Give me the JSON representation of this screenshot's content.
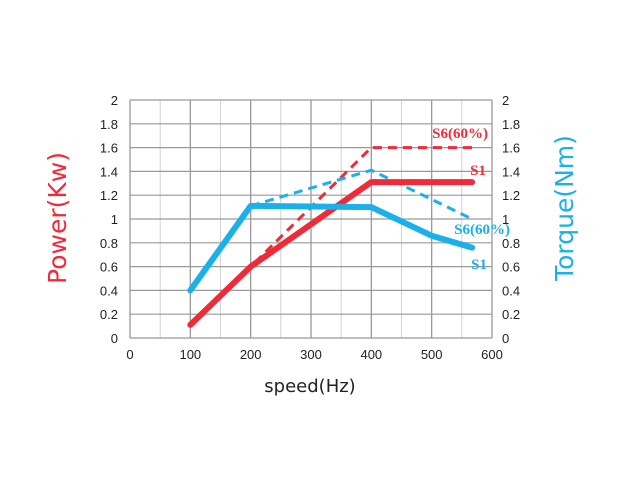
{
  "colors": {
    "power": "#f02a38",
    "torque": "#1ab0ea",
    "grid": "#999999",
    "text": "#222222"
  },
  "chart_data": {
    "type": "line",
    "xlabel": "speed(Hz)",
    "ylabel_left": "Power(Kw)",
    "ylabel_right": "Torque(Nm)",
    "xlim": [
      0,
      600
    ],
    "ylim_left": [
      0,
      2
    ],
    "ylim_right": [
      0,
      2
    ],
    "x_ticks": [
      "0",
      "100",
      "200",
      "300",
      "400",
      "500",
      "600"
    ],
    "y_ticks": [
      "0",
      "0.2",
      "0.4",
      "0.6",
      "0.8",
      "1",
      "1.2",
      "1.4",
      "1.6",
      "1.8",
      "2"
    ],
    "grid": true,
    "series": [
      {
        "name": "S1",
        "axis": "left",
        "style": "solid",
        "color": "#f02a38",
        "x": [
          100,
          200,
          400,
          567
        ],
        "y": [
          0.11,
          0.6,
          1.31,
          1.31
        ]
      },
      {
        "name": "S6(60%)",
        "axis": "left",
        "style": "dashed",
        "color": "#f02a38",
        "x": [
          100,
          200,
          400,
          567
        ],
        "y": [
          0.11,
          0.6,
          1.6,
          1.6
        ]
      },
      {
        "name": "S1",
        "axis": "right",
        "style": "solid",
        "color": "#1ab0ea",
        "x": [
          100,
          200,
          400,
          500,
          567
        ],
        "y": [
          0.4,
          1.11,
          1.1,
          0.86,
          0.76
        ]
      },
      {
        "name": "S6(60%)",
        "axis": "right",
        "style": "dashed",
        "color": "#1ab0ea",
        "x": [
          200,
          400,
          567
        ],
        "y": [
          1.11,
          1.41,
          1.0
        ]
      }
    ]
  }
}
